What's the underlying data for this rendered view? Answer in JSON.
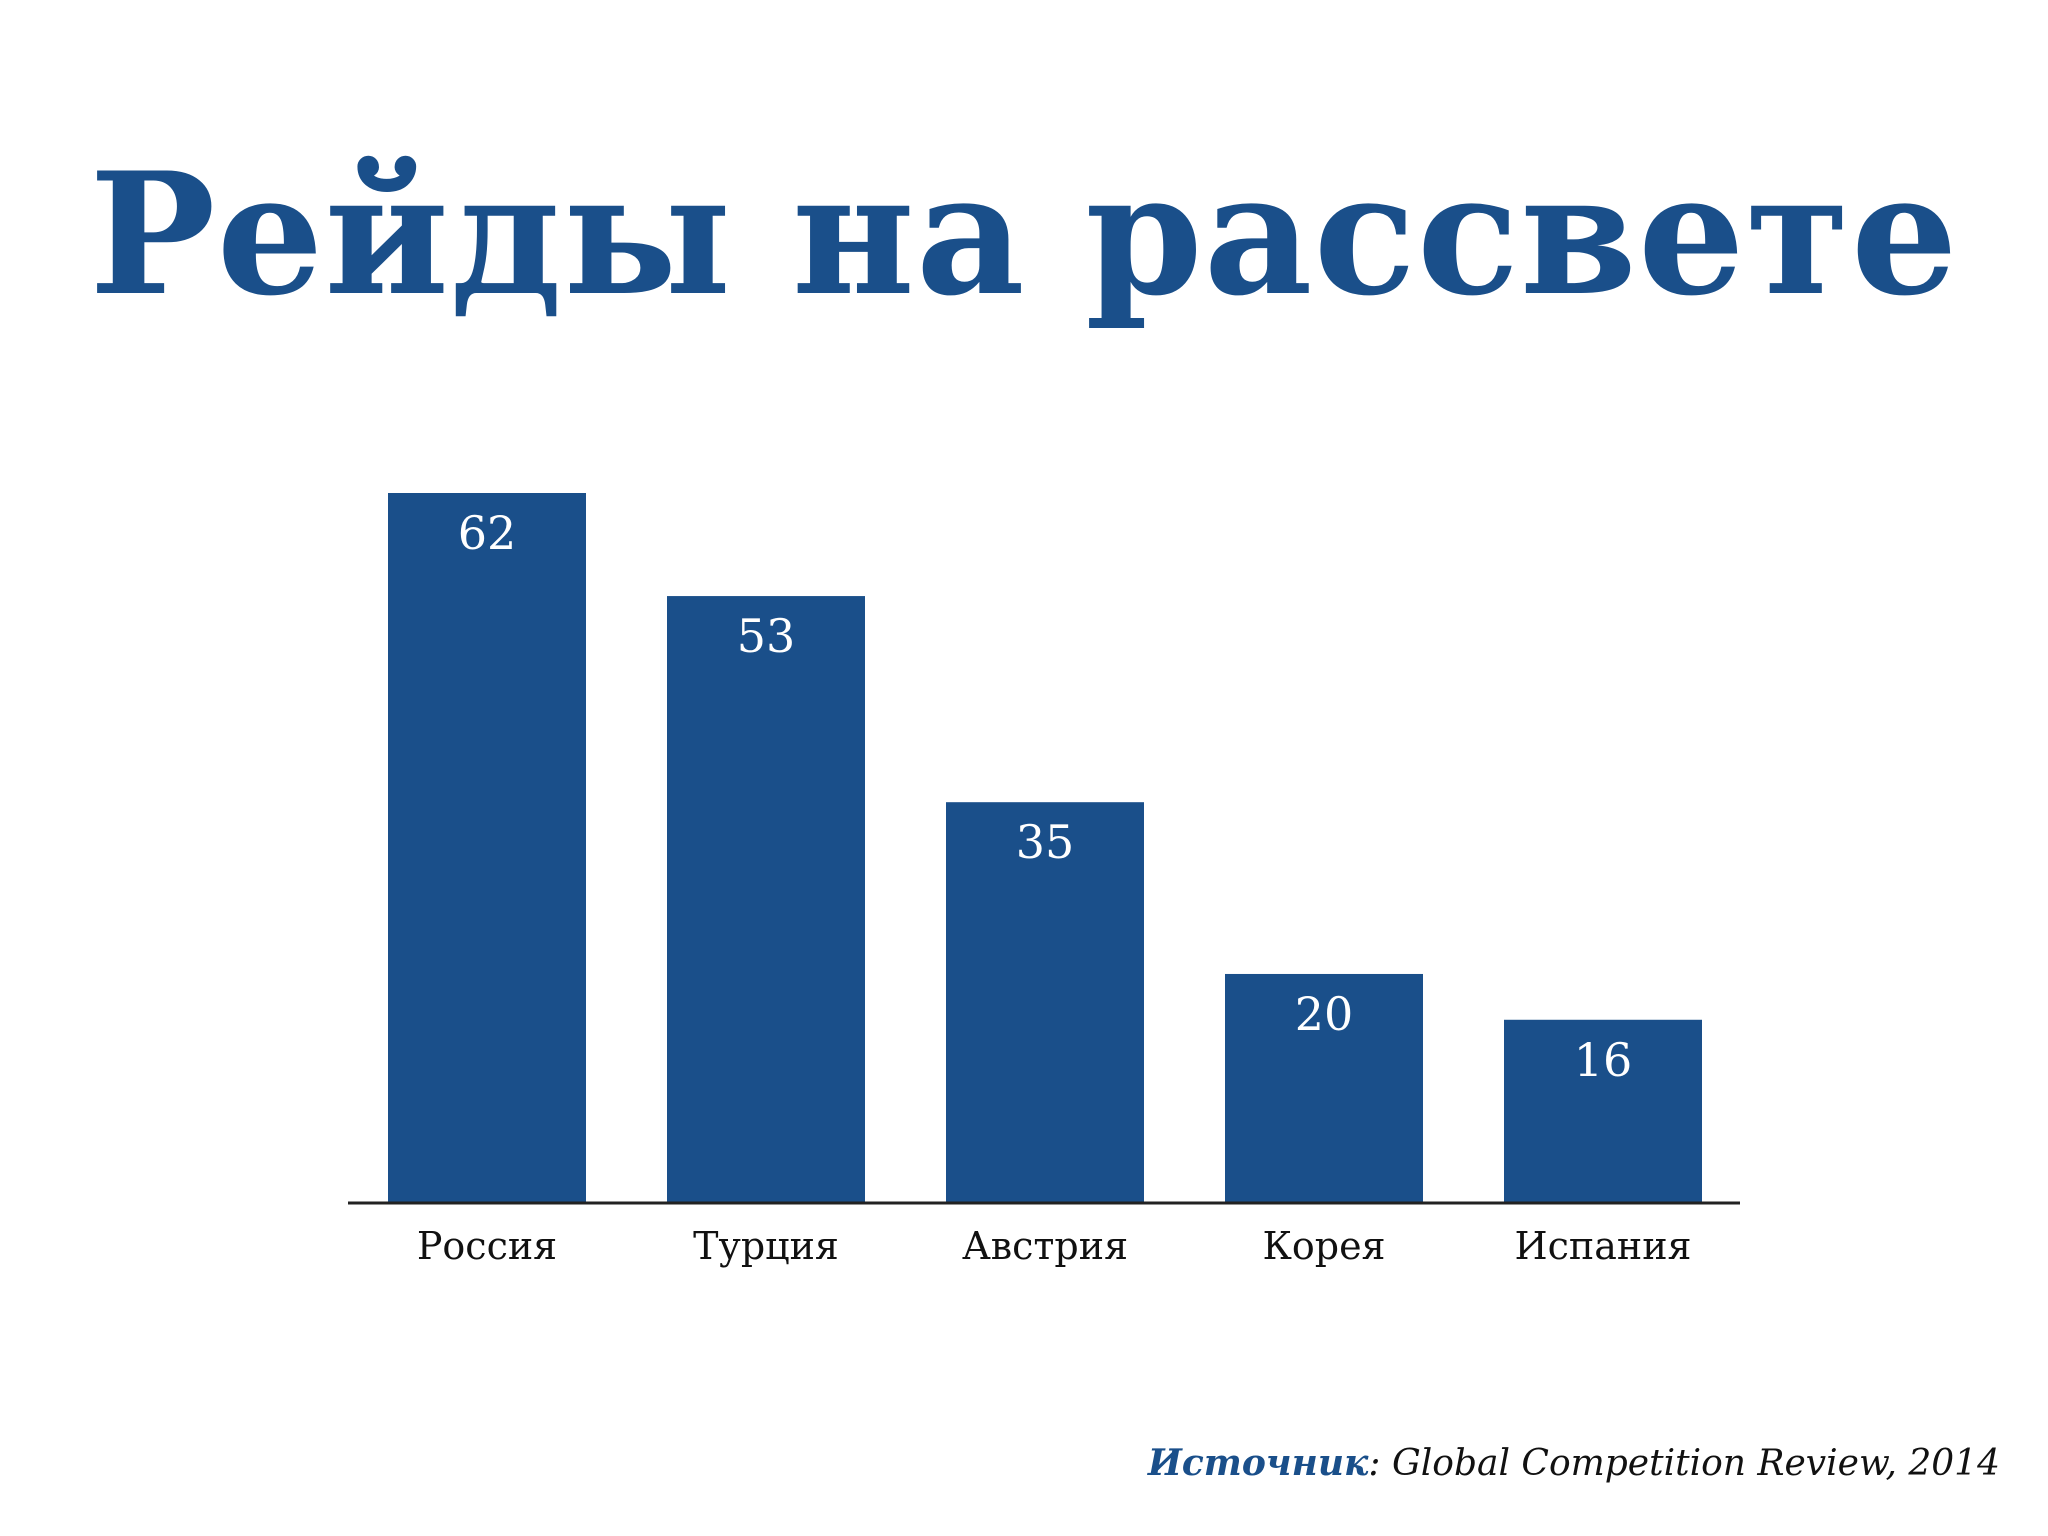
{
  "slide": {
    "title": "Рейды на рассвете"
  },
  "source": {
    "label": "Источник",
    "separator": ": ",
    "text": "Global Competition Review, 2014"
  },
  "colors": {
    "accent": "#1a4f8a",
    "bar": "#1a4f8a",
    "axis": "#222222",
    "bar_label": "#ffffff",
    "category_label": "#111111"
  },
  "chart_data": {
    "type": "bar",
    "categories": [
      "Россия",
      "Турция",
      "Австрия",
      "Корея",
      "Испания"
    ],
    "values": [
      62,
      53,
      35,
      20,
      16
    ],
    "data_labels": [
      "62",
      "53",
      "35",
      "20",
      "16"
    ],
    "xlabel": "",
    "ylabel": "",
    "ylim": [
      0,
      62
    ],
    "grid": false,
    "legend": "none",
    "label_position": "inside-top"
  }
}
